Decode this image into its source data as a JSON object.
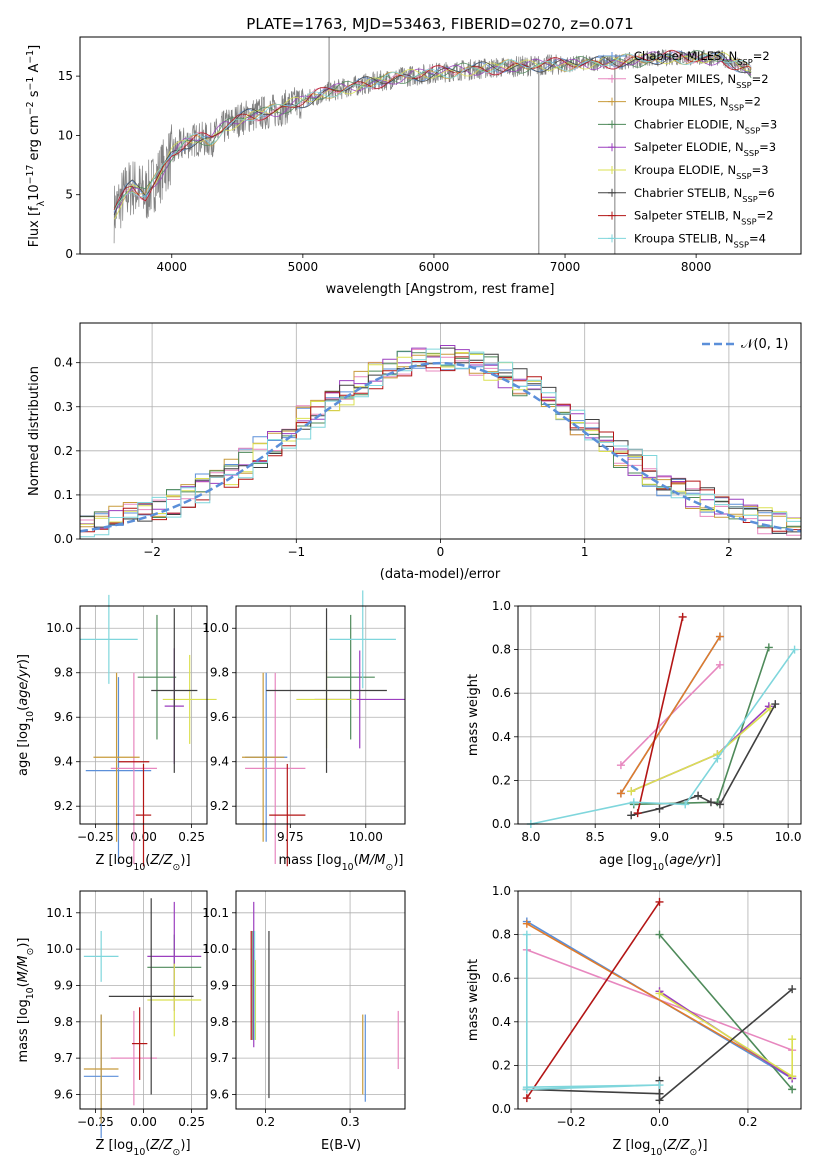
{
  "title": "PLATE=1763, MJD=53463, FIBERID=0270, z=0.071",
  "colors": {
    "Chabrier MILES": "#5b8fd9",
    "Salpeter MILES": "#e787bf",
    "Kroupa MILES": "#c89b3c",
    "Chabrier ELODIE": "#4e8a5a",
    "Salpeter ELODIE": "#9b3fbf",
    "Kroupa ELODIE": "#dbe052",
    "Chabrier STELIB": "#404040",
    "Salpeter STELIB": "#b31515",
    "Kroupa STELIB": "#7fd6dc",
    "observed": "#808080",
    "orange": "#e07b2a",
    "gaussian": "#5b8fd9"
  },
  "chart_data": [
    {
      "type": "line",
      "panel": "spectrum",
      "xlabel": "wavelength [Angstrom, rest frame]",
      "ylabel": "Flux [f",
      "ylabel_parts": [
        "Flux [f",
        "λ",
        "10",
        "−17",
        " erg cm",
        "−2",
        " s",
        "−1",
        " A",
        "−1",
        "]"
      ],
      "xlim": [
        3300,
        8800
      ],
      "ylim": [
        0,
        18.3
      ],
      "xticks": [
        4000,
        5000,
        6000,
        7000,
        8000
      ],
      "yticks": [
        0,
        5,
        10,
        15
      ],
      "legend_position": "right",
      "legend": [
        {
          "name": "Chabrier MILES",
          "pre": "Chabrier MILES, N",
          "sub": "SSP",
          "post": "=2"
        },
        {
          "name": "Salpeter MILES",
          "pre": "Salpeter MILES, N",
          "sub": "SSP",
          "post": "=2"
        },
        {
          "name": "Kroupa MILES",
          "pre": "Kroupa MILES, N",
          "sub": "SSP",
          "post": "=2"
        },
        {
          "name": "Chabrier ELODIE",
          "pre": "Chabrier ELODIE, N",
          "sub": "SSP",
          "post": "=3"
        },
        {
          "name": "Salpeter ELODIE",
          "pre": "Salpeter ELODIE, N",
          "sub": "SSP",
          "post": "=3"
        },
        {
          "name": "Kroupa ELODIE",
          "pre": "Kroupa ELODIE, N",
          "sub": "SSP",
          "post": "=3"
        },
        {
          "name": "Chabrier STELIB",
          "pre": "Chabrier STELIB, N",
          "sub": "SSP",
          "post": "=6"
        },
        {
          "name": "Salpeter STELIB",
          "pre": "Salpeter STELIB, N",
          "sub": "SSP",
          "post": "=2"
        },
        {
          "name": "Kroupa STELIB",
          "pre": "Kroupa STELIB, N",
          "sub": "SSP",
          "post": "=4"
        }
      ],
      "model_shape": [
        [
          3560,
          3.5
        ],
        [
          3600,
          4.3
        ],
        [
          3650,
          5.2
        ],
        [
          3700,
          5.7
        ],
        [
          3800,
          5.0
        ],
        [
          3900,
          6.6
        ],
        [
          4000,
          8.4
        ],
        [
          4100,
          9.4
        ],
        [
          4200,
          9.7
        ],
        [
          4300,
          9.6
        ],
        [
          4400,
          10.7
        ],
        [
          4500,
          11.3
        ],
        [
          4600,
          11.7
        ],
        [
          4800,
          12.1
        ],
        [
          5000,
          12.9
        ],
        [
          5200,
          13.7
        ],
        [
          5500,
          14.4
        ],
        [
          5800,
          15.0
        ],
        [
          6200,
          15.5
        ],
        [
          6600,
          15.8
        ],
        [
          7000,
          16.0
        ],
        [
          7400,
          16.2
        ],
        [
          7800,
          16.6
        ],
        [
          8200,
          16.5
        ],
        [
          8400,
          15.5
        ],
        [
          8600,
          14.0
        ]
      ],
      "spikes": [
        [
          5200,
          18.3
        ],
        [
          6800,
          0
        ],
        [
          7380,
          0
        ]
      ]
    },
    {
      "type": "bar",
      "panel": "residual-histogram",
      "xlabel": "(data-model)/error",
      "ylabel": "Normed distribution",
      "xlim": [
        -2.5,
        2.5
      ],
      "ylim": [
        0,
        0.49
      ],
      "xticks": [
        -2,
        -1,
        0,
        1,
        2
      ],
      "yticks": [
        0.0,
        0.1,
        0.2,
        0.3,
        0.4
      ],
      "grid": true,
      "bins": 50,
      "legend_position": "top-right",
      "legend": "N(0, 1)",
      "reference_curve": "gaussian mean 0 sigma 1"
    },
    {
      "type": "scatter",
      "panel": "age-vs-metallicity",
      "xlabel": "Z [log10(Z/Z⊙)]",
      "ylabel": "age [log10(age/yr)]",
      "xlim": [
        -0.33,
        0.33
      ],
      "ylim": [
        9.12,
        10.1
      ],
      "xticks": [
        -0.25,
        0.0,
        0.25
      ],
      "yticks": [
        9.2,
        9.4,
        9.6,
        9.8,
        10.0
      ],
      "points": [
        {
          "name": "Chabrier MILES",
          "x": -0.13,
          "xerr": 0.17,
          "y": 9.36,
          "yerr": 0.42
        },
        {
          "name": "Salpeter MILES",
          "x": -0.05,
          "xerr": 0.12,
          "y": 9.37,
          "yerr": 0.43
        },
        {
          "name": "Kroupa MILES",
          "x": -0.14,
          "xerr": 0.12,
          "y": 9.42,
          "yerr": 0.38
        },
        {
          "name": "Chabrier ELODIE",
          "x": 0.07,
          "xerr": 0.1,
          "y": 9.78,
          "yerr": 0.28
        },
        {
          "name": "Salpeter ELODIE",
          "x": 0.16,
          "xerr": 0.05,
          "y": 9.65,
          "yerr": 0.26
        },
        {
          "name": "Kroupa ELODIE",
          "x": 0.24,
          "xerr": 0.14,
          "y": 9.68,
          "yerr": 0.2
        },
        {
          "name": "Chabrier STELIB",
          "x": 0.16,
          "xerr": 0.12,
          "y": 9.72,
          "yerr": 0.37
        },
        {
          "name": "Salpeter STELIB",
          "x": 0.0,
          "xerr": 0.04,
          "y": 9.16,
          "yerr": 0.23
        },
        {
          "name": "Kroupa STELIB",
          "x": -0.18,
          "xerr": 0.15,
          "y": 9.95,
          "yerr": 0.2
        },
        {
          "name": "Salpeter STELIB",
          "x": -0.05,
          "xerr": 0.08,
          "y": 9.4,
          "yerr": 0.0
        }
      ]
    },
    {
      "type": "scatter",
      "panel": "age-vs-mass",
      "xlabel": "mass [log10(M/M⊙)]",
      "ylabel": "",
      "xlim": [
        9.57,
        10.13
      ],
      "ylim": [
        9.12,
        10.1
      ],
      "xticks": [
        9.75,
        10.0
      ],
      "yticks": [
        9.2,
        9.4,
        9.6,
        9.8,
        10.0
      ],
      "points": [
        {
          "name": "Chabrier MILES",
          "x": 9.67,
          "xerr": 0.07,
          "y": 9.42,
          "yerr": 0.38
        },
        {
          "name": "Salpeter MILES",
          "x": 9.7,
          "xerr": 0.1,
          "y": 9.37,
          "yerr": 0.43
        },
        {
          "name": "Kroupa MILES",
          "x": 9.66,
          "xerr": 0.07,
          "y": 9.42,
          "yerr": 0.38
        },
        {
          "name": "Chabrier ELODIE",
          "x": 9.95,
          "xerr": 0.08,
          "y": 9.78,
          "yerr": 0.28
        },
        {
          "name": "Salpeter ELODIE",
          "x": 9.98,
          "xerr": 0.15,
          "y": 9.68,
          "yerr": 0.22
        },
        {
          "name": "Kroupa ELODIE",
          "x": 9.87,
          "xerr": 0.1,
          "y": 9.68,
          "yerr": 0.22
        },
        {
          "name": "Chabrier STELIB",
          "x": 9.87,
          "xerr": 0.2,
          "y": 9.72,
          "yerr": 0.37
        },
        {
          "name": "Salpeter STELIB",
          "x": 9.74,
          "xerr": 0.06,
          "y": 9.16,
          "yerr": 0.23
        },
        {
          "name": "Kroupa STELIB",
          "x": 9.99,
          "xerr": 0.11,
          "y": 9.95,
          "yerr": 0.22
        }
      ]
    },
    {
      "type": "line",
      "panel": "mass-weight-vs-age",
      "xlabel": "age [log10(age/yr)]",
      "ylabel": "mass weight",
      "xlim": [
        7.9,
        10.1
      ],
      "ylim": [
        0,
        1.0
      ],
      "xticks": [
        8.0,
        8.5,
        9.0,
        9.5,
        10.0
      ],
      "yticks": [
        0.0,
        0.2,
        0.4,
        0.6,
        0.8,
        1.0
      ],
      "grid": true,
      "series": [
        {
          "name": "Salpeter MILES",
          "points": [
            [
              8.7,
              0.27
            ],
            [
              9.47,
              0.73
            ]
          ]
        },
        {
          "name": "Chabrier MILES",
          "points": [
            [
              8.7,
              0.14
            ],
            [
              9.47,
              0.86
            ]
          ]
        },
        {
          "name": "Kroupa MILES",
          "points": [
            [
              8.7,
              0.14
            ],
            [
              9.47,
              0.86
            ]
          ]
        },
        {
          "name": "Chabrier ELODIE",
          "points": [
            [
              8.8,
              0.09
            ],
            [
              9.45,
              0.1
            ],
            [
              9.85,
              0.81
            ]
          ]
        },
        {
          "name": "Salpeter ELODIE",
          "points": [
            [
              8.78,
              0.15
            ],
            [
              9.45,
              0.32
            ],
            [
              9.85,
              0.54
            ]
          ]
        },
        {
          "name": "Kroupa ELODIE",
          "points": [
            [
              8.78,
              0.15
            ],
            [
              9.45,
              0.32
            ],
            [
              9.86,
              0.53
            ]
          ]
        },
        {
          "name": "Chabrier STELIB",
          "points": [
            [
              8.78,
              0.04
            ],
            [
              9.0,
              0.07
            ],
            [
              9.3,
              0.13
            ],
            [
              9.4,
              0.1
            ],
            [
              9.47,
              0.09
            ],
            [
              9.9,
              0.55
            ]
          ]
        },
        {
          "name": "Salpeter STELIB",
          "points": [
            [
              8.83,
              0.05
            ],
            [
              9.18,
              0.95
            ]
          ]
        },
        {
          "name": "Kroupa STELIB",
          "points": [
            [
              8.0,
              0.0
            ],
            [
              8.8,
              0.1
            ],
            [
              9.2,
              0.09
            ],
            [
              9.45,
              0.3
            ],
            [
              10.05,
              0.8
            ]
          ]
        }
      ]
    },
    {
      "type": "scatter",
      "panel": "mass-vs-metallicity",
      "xlabel": "Z [log10(Z/Z⊙)]",
      "ylabel": "mass [log10(M/M⊙)]",
      "xlim": [
        -0.33,
        0.33
      ],
      "ylim": [
        9.56,
        10.16
      ],
      "xticks": [
        -0.25,
        0.0,
        0.25
      ],
      "yticks": [
        9.6,
        9.7,
        9.8,
        9.9,
        10.0,
        10.1
      ],
      "points": [
        {
          "name": "Chabrier MILES",
          "x": -0.22,
          "xerr": 0.09,
          "y": 9.65,
          "yerr": 0.17
        },
        {
          "name": "Salpeter MILES",
          "x": -0.05,
          "xerr": 0.12,
          "y": 9.7,
          "yerr": 0.13
        },
        {
          "name": "Kroupa MILES",
          "x": -0.22,
          "xerr": 0.09,
          "y": 9.67,
          "yerr": 0.15
        },
        {
          "name": "Chabrier ELODIE",
          "x": 0.16,
          "xerr": 0.14,
          "y": 9.95,
          "yerr": 0.09
        },
        {
          "name": "Salpeter ELODIE",
          "x": 0.16,
          "xerr": 0.14,
          "y": 9.98,
          "yerr": 0.15
        },
        {
          "name": "Kroupa ELODIE",
          "x": 0.16,
          "xerr": 0.14,
          "y": 9.86,
          "yerr": 0.1
        },
        {
          "name": "Chabrier STELIB",
          "x": 0.04,
          "xerr": 0.22,
          "y": 9.87,
          "yerr": 0.27
        },
        {
          "name": "Salpeter STELIB",
          "x": -0.02,
          "xerr": 0.04,
          "y": 9.74,
          "yerr": 0.1
        },
        {
          "name": "Kroupa STELIB",
          "x": -0.22,
          "xerr": 0.09,
          "y": 9.98,
          "yerr": 0.07
        }
      ]
    },
    {
      "type": "scatter",
      "panel": "mass-vs-extinction",
      "xlabel": "E(B-V)",
      "ylabel": "",
      "xlim": [
        0.165,
        0.365
      ],
      "ylim": [
        9.56,
        10.16
      ],
      "xticks": [
        0.2,
        0.3
      ],
      "yticks": [
        9.6,
        9.7,
        9.8,
        9.9,
        10.0,
        10.1
      ],
      "points": [
        {
          "name": "Chabrier MILES",
          "x": 0.318,
          "y": 9.7,
          "yerr": 0.12
        },
        {
          "name": "Salpeter MILES",
          "x": 0.357,
          "y": 9.75,
          "yerr": 0.08
        },
        {
          "name": "Kroupa MILES",
          "x": 0.315,
          "y": 9.71,
          "yerr": 0.11
        },
        {
          "name": "Chabrier ELODIE",
          "x": 0.185,
          "y": 9.9,
          "yerr": 0.15
        },
        {
          "name": "Salpeter ELODIE",
          "x": 0.186,
          "y": 9.93,
          "yerr": 0.2
        },
        {
          "name": "Kroupa ELODIE",
          "x": 0.188,
          "y": 9.86,
          "yerr": 0.11
        },
        {
          "name": "Chabrier STELIB",
          "x": 0.204,
          "y": 9.82,
          "yerr": 0.23
        },
        {
          "name": "Salpeter STELIB",
          "x": 0.183,
          "y": 9.9,
          "yerr": 0.15
        },
        {
          "name": "Kroupa STELIB",
          "x": 0.187,
          "y": 9.9,
          "yerr": 0.15
        }
      ]
    },
    {
      "type": "line",
      "panel": "mass-weight-vs-metallicity",
      "xlabel": "Z [log10(Z/Z⊙)]",
      "ylabel": "mass weight",
      "xlim": [
        -0.32,
        0.32
      ],
      "ylim": [
        0,
        1.0
      ],
      "xticks": [
        -0.2,
        0.0,
        0.2
      ],
      "yticks": [
        0.0,
        0.2,
        0.4,
        0.6,
        0.8,
        1.0
      ],
      "grid": true,
      "series": [
        {
          "name": "Salpeter MILES",
          "points": [
            [
              -0.3,
              0.73
            ],
            [
              0.3,
              0.27
            ]
          ]
        },
        {
          "name": "Chabrier MILES",
          "points": [
            [
              -0.3,
              0.86
            ],
            [
              0.3,
              0.14
            ]
          ]
        },
        {
          "name": "Kroupa MILES",
          "points": [
            [
              -0.3,
              0.85
            ],
            [
              0.3,
              0.15
            ]
          ]
        },
        {
          "name": "Chabrier ELODIE",
          "points": [
            [
              0.0,
              0.8
            ],
            [
              0.3,
              0.09
            ]
          ]
        },
        {
          "name": "Salpeter ELODIE",
          "points": [
            [
              0.0,
              0.54
            ],
            [
              0.3,
              0.14
            ]
          ]
        },
        {
          "name": "Kroupa ELODIE",
          "points": [
            [
              0.0,
              0.53
            ],
            [
              0.3,
              0.15
            ],
            [
              0.3,
              0.32
            ]
          ]
        },
        {
          "name": "Chabrier STELIB",
          "points": [
            [
              -0.3,
              0.09
            ],
            [
              0.0,
              0.07
            ],
            [
              0.0,
              0.13
            ],
            [
              0.0,
              0.04
            ],
            [
              0.3,
              0.55
            ]
          ]
        },
        {
          "name": "Salpeter STELIB",
          "points": [
            [
              -0.3,
              0.05
            ],
            [
              0.0,
              0.95
            ]
          ]
        },
        {
          "name": "Kroupa STELIB",
          "points": [
            [
              -0.3,
              0.8
            ],
            [
              -0.3,
              0.09
            ],
            [
              0.0,
              0.11
            ],
            [
              -0.3,
              0.1
            ]
          ]
        }
      ]
    }
  ]
}
